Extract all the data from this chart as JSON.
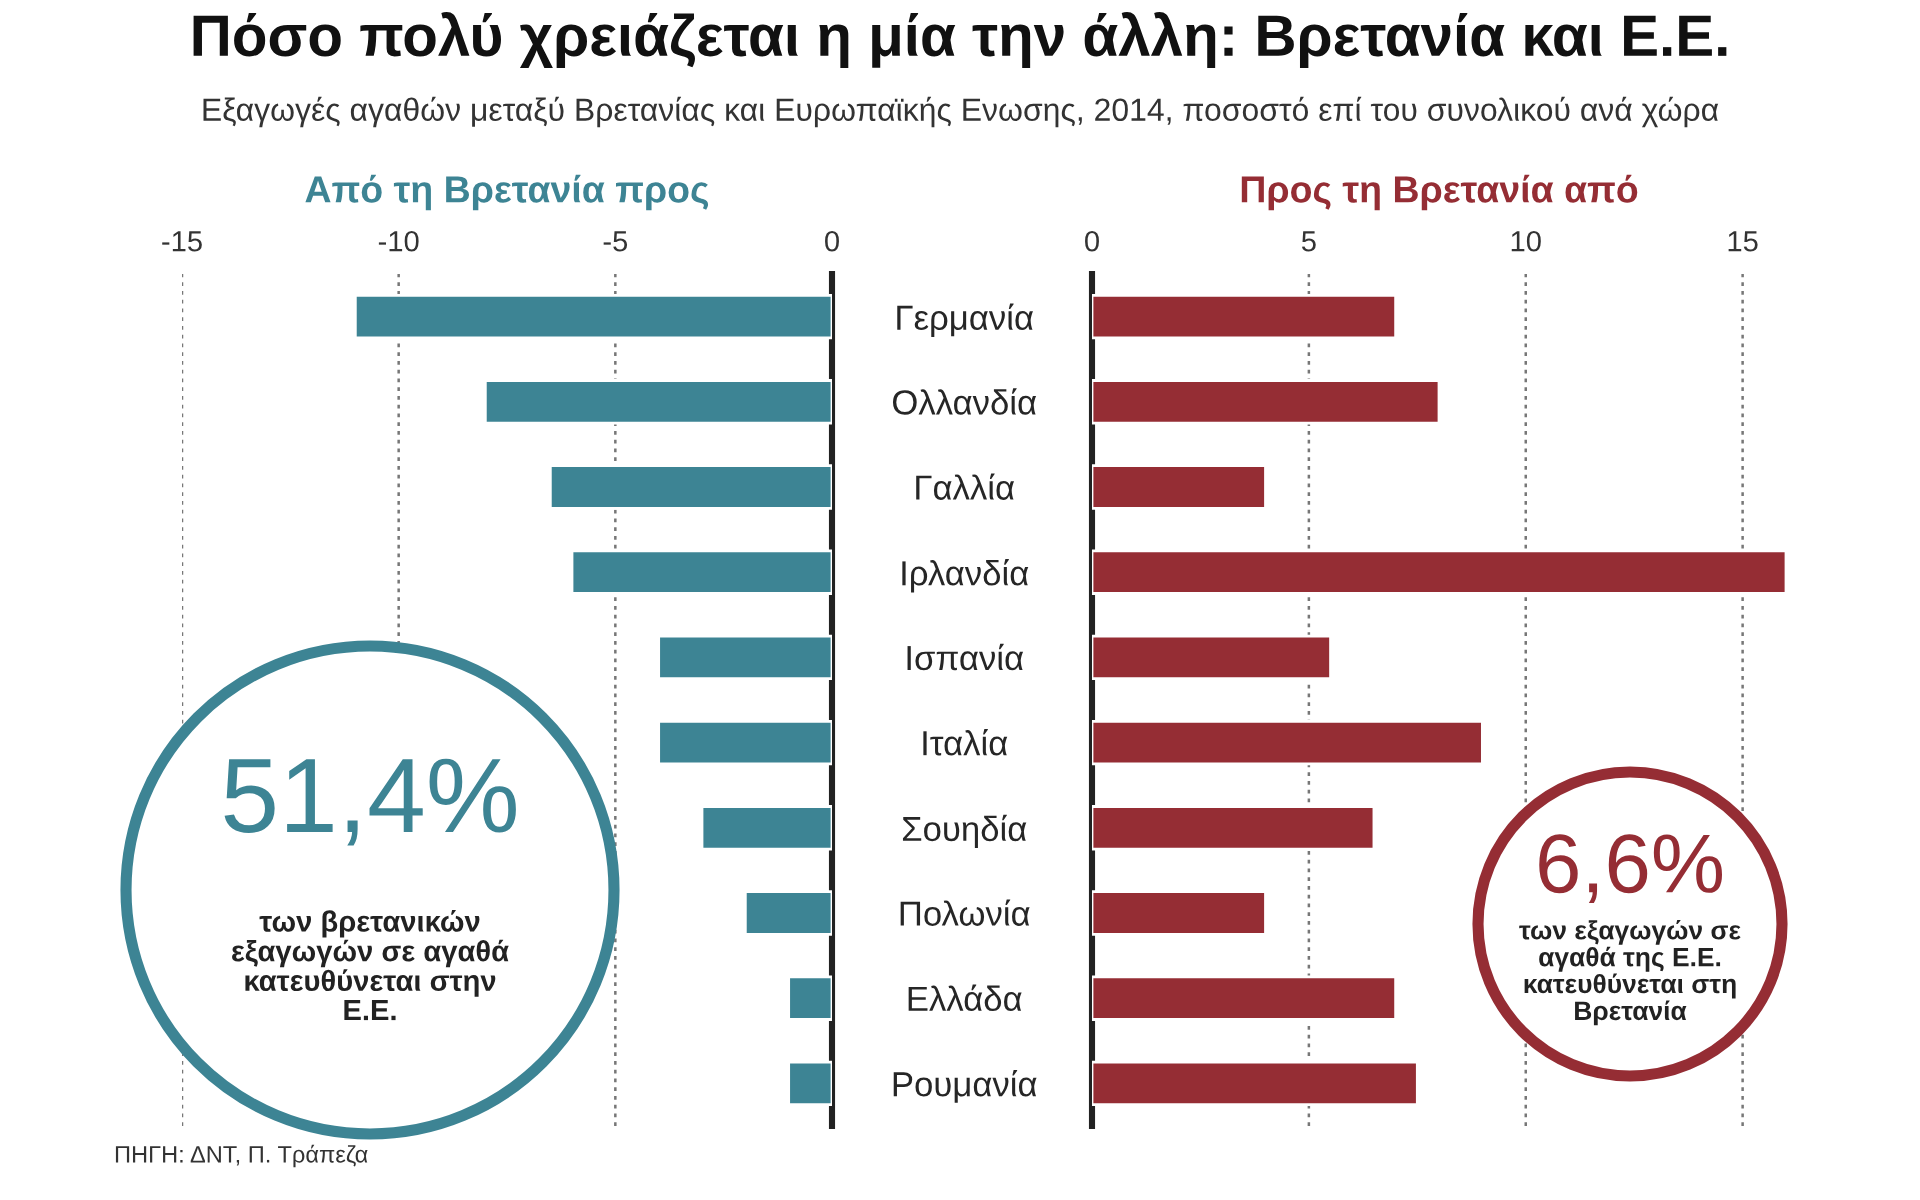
{
  "chart_data": [
    {
      "type": "bar",
      "orientation": "horizontal",
      "title": "Πόσο πολύ χρειάζεται η μία την άλλη: Βρετανία και Ε.Ε.",
      "subtitle": "Εξαγωγές αγαθών μεταξύ Βρετανίας και Ευρωπαϊκής Ενωσης, 2014, ποσοστό επί του συνολικού ανά χώρα",
      "xlabel": "Από τη Βρετανία προς",
      "categories": [
        null,
        null,
        null,
        null,
        null,
        null,
        null,
        null,
        null,
        null
      ],
      "tick_labels": "x",
      "values": [
        -11.0,
        -8.0,
        -6.5,
        -6.0,
        -4.0,
        -4.0,
        -3.0,
        -2.0,
        -1.0,
        -1.0
      ],
      "color": "#3d8494",
      "xlim": [
        -15,
        0
      ],
      "xticks": [
        -15,
        -10,
        -5,
        0
      ],
      "grid": "x",
      "annotations": [
        "51,4%",
        "των βρετανικών\nεξαγωγών σε αγαθά\nκατευθύνεται στην\nΕ.Ε.",
        "ΠΗΓΗ: ΔΝΤ, Π. Τράπεζα"
      ]
    },
    {
      "type": "bar",
      "orientation": "horizontal",
      "xlabel": "Προς τη Βρετανία από",
      "categories": [
        "Γερμανία",
        "Ολλανδία",
        "Γαλλία",
        "Ιρλανδία",
        "Ισπανία",
        "Ιταλία",
        "Σουηδία",
        "Πολωνία",
        "Ελλάδα",
        "Ρουμανία"
      ],
      "values": [
        7.0,
        8.0,
        4.0,
        16.0,
        5.5,
        9.0,
        6.5,
        4.0,
        7.0,
        7.5
      ],
      "color": "#952d34",
      "xlim": [
        0,
        16
      ],
      "xticks": [
        0,
        5,
        10,
        15
      ],
      "grid": "x",
      "annotations": [
        "6,6%",
        "των εξαγωγών σε\nαγαθά της Ε.Ε.\nκατευθύνεται στη\nΒρετανία"
      ]
    }
  ]
}
